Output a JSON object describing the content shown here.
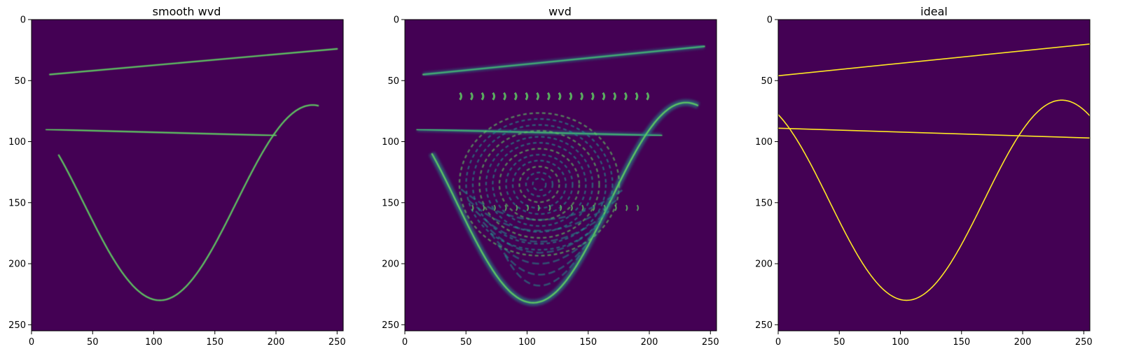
{
  "figure": {
    "background": "#ffffff"
  },
  "colormap": {
    "name": "viridis",
    "background": "#440154",
    "low": "#3b528b",
    "mid": "#21918c",
    "high": "#5ec962",
    "peak": "#fde725"
  },
  "chart_data": [
    {
      "type": "heatmap",
      "title": "smooth wvd",
      "xlim": [
        0,
        255
      ],
      "ylim": [
        255,
        0
      ],
      "xticks": [
        0,
        50,
        100,
        150,
        200,
        250
      ],
      "yticks": [
        0,
        50,
        100,
        150,
        200,
        250
      ],
      "y_inverted": true,
      "features": [
        {
          "name": "",
          "shape": "line",
          "x": [
            15,
            250
          ],
          "y": [
            45,
            24
          ],
          "intensity": 0.8
        },
        {
          "name": "",
          "shape": "line",
          "x": [
            12,
            200
          ],
          "y": [
            90,
            95
          ],
          "intensity": 0.7
        },
        {
          "name": "",
          "shape": "sinusoid",
          "x": [
            22,
            235
          ],
          "trough": [
            105,
            230
          ],
          "intensity": 0.75
        }
      ]
    },
    {
      "type": "heatmap",
      "title": "wvd",
      "xlim": [
        0,
        255
      ],
      "ylim": [
        255,
        0
      ],
      "xticks": [
        0,
        50,
        100,
        150,
        200,
        250
      ],
      "yticks": [
        0,
        50,
        100,
        150,
        200,
        250
      ],
      "y_inverted": true,
      "features": [
        {
          "name": "",
          "shape": "line",
          "x": [
            15,
            245
          ],
          "y": [
            45,
            22
          ],
          "intensity": 0.8
        },
        {
          "name": "",
          "shape": "line",
          "x": [
            10,
            210
          ],
          "y": [
            90,
            95
          ],
          "intensity": 0.7
        },
        {
          "name": "",
          "shape": "sinusoid",
          "x": [
            22,
            240
          ],
          "trough": [
            105,
            232
          ],
          "intensity": 0.75
        },
        {
          "name": "",
          "shape": "interference",
          "x": [
            5,
            240
          ],
          "y": [
            20,
            245
          ],
          "intensity": 0.45
        }
      ]
    },
    {
      "type": "heatmap",
      "title": "ideal",
      "xlim": [
        0,
        255
      ],
      "ylim": [
        255,
        0
      ],
      "xticks": [
        0,
        50,
        100,
        150,
        200,
        250
      ],
      "yticks": [
        0,
        50,
        100,
        150,
        200,
        250
      ],
      "y_inverted": true,
      "features": [
        {
          "name": "",
          "shape": "line",
          "x": [
            0,
            255
          ],
          "y": [
            46,
            20
          ],
          "intensity": 0.8
        },
        {
          "name": "",
          "shape": "line",
          "x": [
            0,
            255
          ],
          "y": [
            89,
            97
          ],
          "intensity": 0.7
        },
        {
          "name": "",
          "shape": "sinusoid",
          "x": [
            0,
            255
          ],
          "trough": [
            105,
            230
          ],
          "peak": [
            232,
            66
          ],
          "intensity": 1.0
        }
      ]
    }
  ]
}
